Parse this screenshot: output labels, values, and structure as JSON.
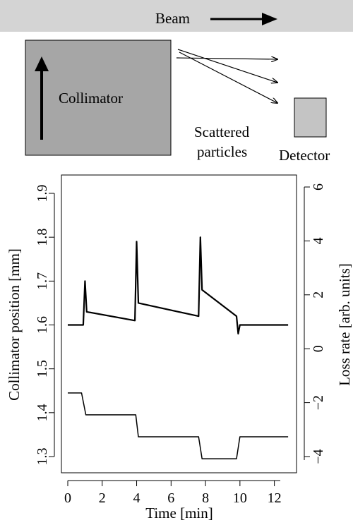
{
  "diagram": {
    "beam_label": "Beam",
    "collimator_label": "Collimator",
    "scattered_label_line1": "Scattered",
    "scattered_label_line2": "particles",
    "detector_label": "Detector",
    "colors": {
      "beam_band": "#d4d4d4",
      "collimator": "#a6a6a6",
      "detector": "#c4c4c4"
    }
  },
  "chart_data": {
    "type": "line",
    "xlabel": "Time [min]",
    "ylabel_left": "Collimator position [mm]",
    "ylabel_right": "Loss rate [arb. units]",
    "xlim": [
      0,
      13
    ],
    "ylim_left": [
      1.28,
      1.92
    ],
    "ylim_right": [
      -4.4,
      6.4
    ],
    "x_ticks": [
      0,
      2,
      4,
      6,
      8,
      10,
      12
    ],
    "y_left_ticks": [
      1.3,
      1.4,
      1.5,
      1.6,
      1.7,
      1.8,
      1.9
    ],
    "y_right_ticks": [
      -4,
      -2,
      0,
      2,
      4,
      6
    ],
    "x_tick_labels": [
      "0",
      "2",
      "4",
      "6",
      "8",
      "10",
      "12"
    ],
    "y_left_tick_labels": [
      "1.3",
      "1.4",
      "1.5",
      "1.6",
      "1.7",
      "1.8",
      "1.9"
    ],
    "y_right_tick_labels": [
      "−4",
      "−2",
      "0",
      "2",
      "4",
      "6"
    ],
    "grid": false,
    "series": [
      {
        "axis": "left",
        "x": [
          0.0,
          0.9,
          1.0,
          1.1,
          3.9,
          4.0,
          4.1,
          7.6,
          7.7,
          7.8,
          9.8,
          9.9,
          10.0,
          12.8
        ],
        "y": [
          1.6,
          1.6,
          1.7,
          1.63,
          1.61,
          1.79,
          1.65,
          1.62,
          1.8,
          1.68,
          1.62,
          1.58,
          1.6,
          1.6
        ]
      },
      {
        "axis": "left",
        "x": [
          0.0,
          0.8,
          1.05,
          3.95,
          4.1,
          7.6,
          7.8,
          9.8,
          10.0,
          12.8
        ],
        "y": [
          1.445,
          1.445,
          1.395,
          1.395,
          1.345,
          1.345,
          1.295,
          1.295,
          1.345,
          1.345
        ]
      }
    ]
  }
}
